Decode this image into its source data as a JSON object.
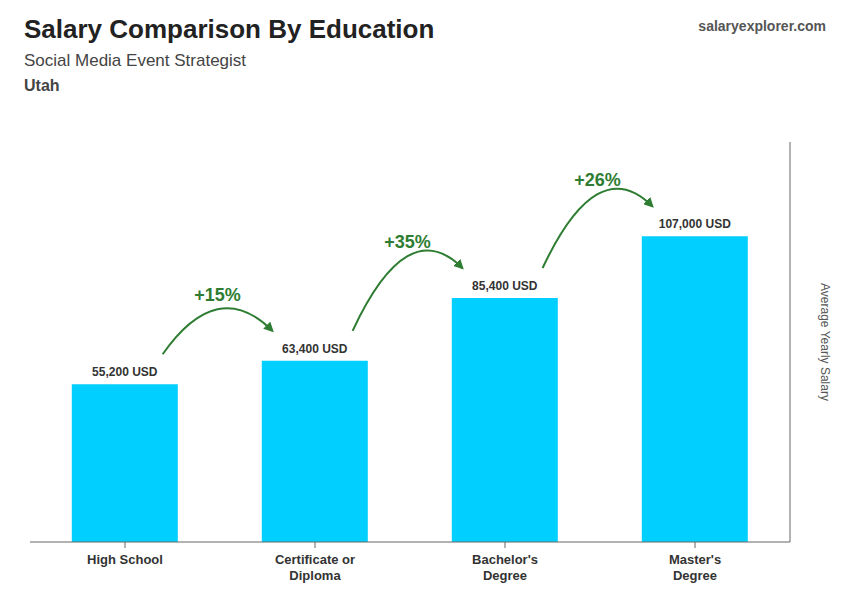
{
  "chart_data": {
    "type": "bar",
    "title": "Salary Comparison By Education",
    "subtitle": [
      "Social Media Event Strategist",
      "Utah"
    ],
    "ylabel": "Average Yearly Salary",
    "categories": [
      "High School",
      "Certificate or\nDiploma",
      "Bachelor's\nDegree",
      "Master's\nDegree"
    ],
    "values": [
      55200,
      63400,
      85400,
      107000
    ],
    "value_labels": [
      "55,200 USD",
      "63,400 USD",
      "85,400 USD",
      "107,000 USD"
    ],
    "data_labels": true,
    "color": "#00CFFF",
    "ylim": [
      0,
      140000
    ],
    "tick_labels": "x",
    "grid": false,
    "annotations": [
      "+15%",
      "+35%",
      "+26%",
      "salaryexplorer.com"
    ]
  }
}
